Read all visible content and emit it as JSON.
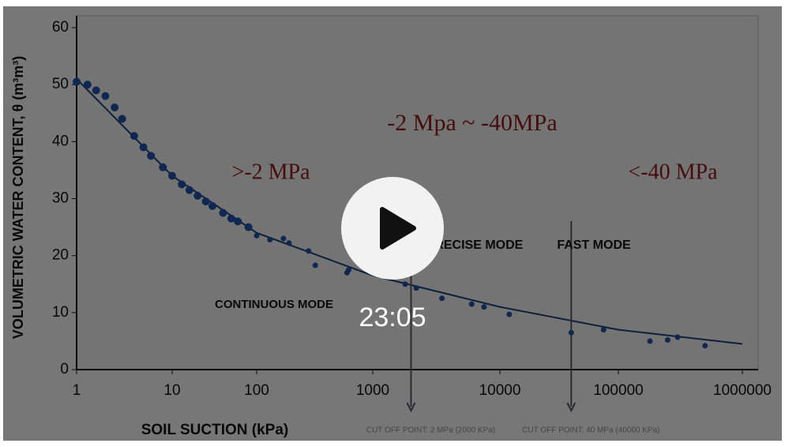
{
  "chart_data": {
    "type": "scatter",
    "xlabel": "SOIL SUCTION (kPa)",
    "ylabel": "VOLUMETRIC WATER CONTENT, θ (m³m³)",
    "log_x": true,
    "xlim": [
      1,
      1000000
    ],
    "xticks": [
      1,
      10,
      100,
      1000,
      10000,
      100000,
      1000000
    ],
    "ylim": [
      0,
      60
    ],
    "yticks": [
      0,
      10,
      20,
      30,
      40,
      50,
      60
    ],
    "color": "#1f4fa3",
    "x": [
      1,
      1.3,
      1.6,
      2,
      2.5,
      3,
      4,
      5,
      6,
      8,
      10,
      13,
      16,
      20,
      25,
      30,
      40,
      50,
      60,
      80,
      100,
      130,
      170,
      190,
      280,
      320,
      600,
      620,
      1800,
      2200,
      3500,
      6000,
      7500,
      12000,
      40000,
      75000,
      180000,
      250000,
      300000,
      500000
    ],
    "values": [
      50.5,
      50,
      49,
      48,
      46,
      44,
      41,
      39,
      37.5,
      35.5,
      34,
      32.5,
      31.5,
      30.5,
      29.5,
      28.7,
      27.5,
      26.5,
      26,
      25,
      23.5,
      22.8,
      23,
      22.2,
      20.8,
      18.3,
      17,
      17.5,
      15,
      14.3,
      12.5,
      11.5,
      11,
      9.7,
      6.5,
      7,
      5,
      5.2,
      5.7,
      4.2
    ],
    "fit": {
      "color": "#1d3f73",
      "x": [
        1,
        10,
        100,
        1000,
        10000,
        100000,
        1000000
      ],
      "values": [
        51,
        34,
        24,
        16.5,
        11,
        7,
        4.5
      ]
    },
    "annotations": [
      ">-2 MPa",
      "-2 Mpa ~ -40MPa",
      "<-40 MPa",
      "CONTINUOUS MODE",
      "PRECISE MODE",
      "FAST MODE"
    ],
    "cutoffs": [
      {
        "x": 2000,
        "label": "CUT OFF POINT: 2 MPa (2000 KPa)"
      },
      {
        "x": 40000,
        "label": "CUT OFF POINT: 40 MPa (40000 KPa)"
      }
    ]
  },
  "player": {
    "duration": "23:05"
  }
}
